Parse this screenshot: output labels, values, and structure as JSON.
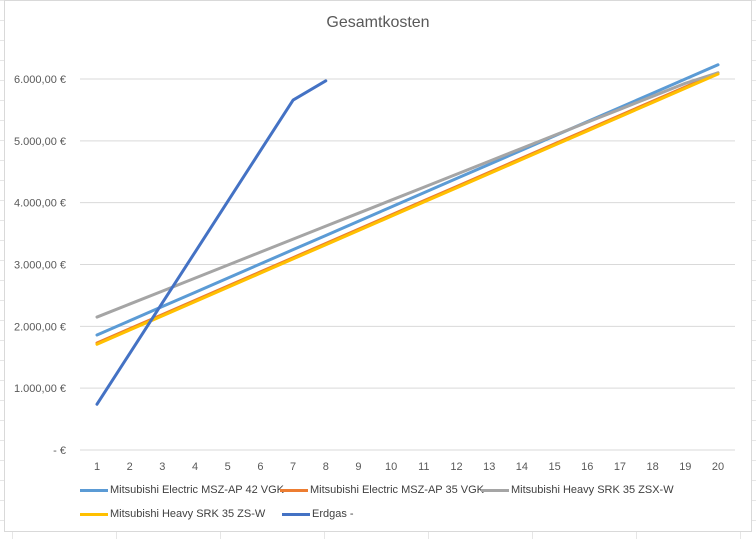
{
  "chart_data": {
    "type": "line",
    "title": "Gesamtkosten",
    "xlabel": "",
    "ylabel": "",
    "x": [
      1,
      2,
      3,
      4,
      5,
      6,
      7,
      8,
      9,
      10,
      11,
      12,
      13,
      14,
      15,
      16,
      17,
      18,
      19,
      20
    ],
    "ylim": [
      0,
      6000
    ],
    "y_ticks": [
      0,
      1000,
      2000,
      3000,
      4000,
      5000,
      6000
    ],
    "y_tick_labels": [
      "-   €",
      "1.000,00 €",
      "2.000,00 €",
      "3.000,00 €",
      "4.000,00 €",
      "5.000,00 €",
      "6.000,00 €"
    ],
    "x_tick_labels": [
      "1",
      "2",
      "3",
      "4",
      "5",
      "6",
      "7",
      "8",
      "9",
      "10",
      "11",
      "12",
      "13",
      "14",
      "15",
      "16",
      "17",
      "18",
      "19",
      "20"
    ],
    "grid": true,
    "legend_position": "bottom",
    "series": [
      {
        "name": "Mitsubishi Electric MSZ-AP 42 VGK",
        "color": "#5b9bd5",
        "values": [
          1860,
          2090,
          2320,
          2550,
          2780,
          3010,
          3240,
          3470,
          3700,
          3930,
          4160,
          4390,
          4620,
          4850,
          5080,
          5310,
          5540,
          5770,
          6000,
          6230
        ]
      },
      {
        "name": "Mitsubishi Electric MSZ-AP 35 VGK",
        "color": "#ed7d31",
        "values": [
          1730,
          1960,
          2190,
          2420,
          2650,
          2880,
          3110,
          3340,
          3570,
          3800,
          4030,
          4260,
          4490,
          4720,
          4950,
          5180,
          5410,
          5640,
          5870,
          6100
        ]
      },
      {
        "name": "Mitsubishi Heavy SRK 35 ZSX-W",
        "color": "#a5a5a5",
        "values": [
          2150,
          2360,
          2570,
          2780,
          2990,
          3200,
          3410,
          3620,
          3830,
          4040,
          4250,
          4460,
          4670,
          4880,
          5090,
          5300,
          5510,
          5720,
          5930,
          6100
        ]
      },
      {
        "name": "Mitsubishi Heavy SRK 35 ZS-W",
        "color": "#ffc000",
        "values": [
          1710,
          1940,
          2170,
          2400,
          2630,
          2860,
          3090,
          3320,
          3550,
          3780,
          4010,
          4240,
          4470,
          4700,
          4930,
          5160,
          5390,
          5620,
          5850,
          6080
        ]
      },
      {
        "name": "Erdgas -",
        "color": "#4472c4",
        "values": [
          740,
          1560,
          2380,
          3200,
          4020,
          4840,
          5660,
          5970,
          null,
          null,
          null,
          null,
          null,
          null,
          null,
          null,
          null,
          null,
          null,
          null
        ]
      }
    ]
  }
}
